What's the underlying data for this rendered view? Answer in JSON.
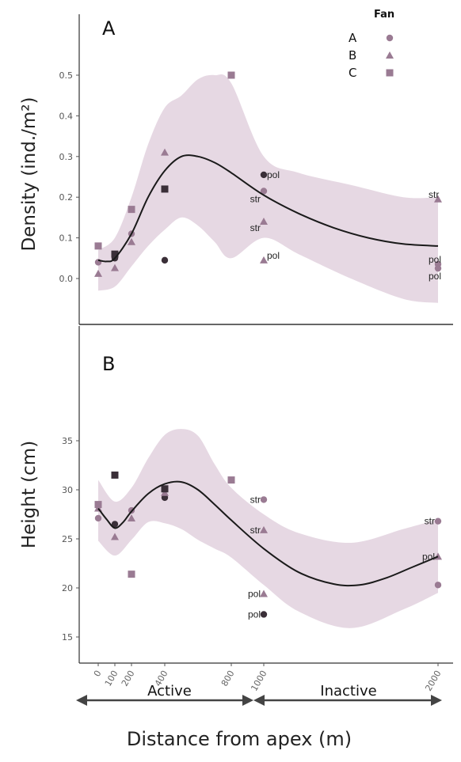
{
  "chart_data": [
    {
      "type": "scatter",
      "panel_label": "A",
      "ylabel": "Density (ind./m²)",
      "ylim": [
        -0.1,
        0.52
      ],
      "yticks": [
        "0.0",
        "0.1",
        "0.2",
        "0.3",
        "0.4",
        "0.5"
      ],
      "ytick_values": [
        0,
        0.1,
        0.2,
        0.3,
        0.4,
        0.5
      ],
      "points": [
        {
          "fan": "A",
          "x": 0,
          "y": 0.04
        },
        {
          "fan": "B",
          "x": 0,
          "y": 0.012
        },
        {
          "fan": "C",
          "x": 0,
          "y": 0.08
        },
        {
          "fan": "A",
          "x": 100,
          "y": 0.05
        },
        {
          "fan": "B",
          "x": 100,
          "y": 0.026
        },
        {
          "fan": "C",
          "x": 100,
          "y": 0.06
        },
        {
          "fan": "A",
          "x": 200,
          "y": 0.11
        },
        {
          "fan": "B",
          "x": 200,
          "y": 0.09
        },
        {
          "fan": "C",
          "x": 200,
          "y": 0.17
        },
        {
          "fan": "A",
          "x": 400,
          "y": 0.045
        },
        {
          "fan": "B",
          "x": 400,
          "y": 0.31
        },
        {
          "fan": "C",
          "x": 400,
          "y": 0.22
        },
        {
          "fan": "C",
          "x": 800,
          "y": 0.5
        },
        {
          "fan": "A",
          "x": 1000,
          "y": 0.255,
          "label": "pol"
        },
        {
          "fan": "A",
          "x": 1000,
          "y": 0.215,
          "label": "str"
        },
        {
          "fan": "B",
          "x": 1000,
          "y": 0.14,
          "label": "str"
        },
        {
          "fan": "B",
          "x": 1000,
          "y": 0.045,
          "label": "pol"
        },
        {
          "fan": "B",
          "x": 2000,
          "y": 0.195,
          "label": "str"
        },
        {
          "fan": "A",
          "x": 2000,
          "y": 0.035,
          "label": "pol"
        },
        {
          "fan": "A",
          "x": 2000,
          "y": 0.025,
          "label": "pol"
        }
      ],
      "trend": [
        {
          "x": 0,
          "y": 0.045
        },
        {
          "x": 50,
          "y": 0.042
        },
        {
          "x": 100,
          "y": 0.05
        },
        {
          "x": 200,
          "y": 0.11
        },
        {
          "x": 300,
          "y": 0.2
        },
        {
          "x": 400,
          "y": 0.265
        },
        {
          "x": 500,
          "y": 0.3
        },
        {
          "x": 600,
          "y": 0.3
        },
        {
          "x": 700,
          "y": 0.285
        },
        {
          "x": 800,
          "y": 0.26
        },
        {
          "x": 1000,
          "y": 0.205
        },
        {
          "x": 1200,
          "y": 0.16
        },
        {
          "x": 1400,
          "y": 0.125
        },
        {
          "x": 1600,
          "y": 0.1
        },
        {
          "x": 1800,
          "y": 0.085
        },
        {
          "x": 2000,
          "y": 0.08
        }
      ],
      "band_upper": [
        {
          "x": 0,
          "y": 0.07
        },
        {
          "x": 100,
          "y": 0.1
        },
        {
          "x": 200,
          "y": 0.2
        },
        {
          "x": 300,
          "y": 0.33
        },
        {
          "x": 400,
          "y": 0.42
        },
        {
          "x": 500,
          "y": 0.45
        },
        {
          "x": 600,
          "y": 0.49
        },
        {
          "x": 700,
          "y": 0.5
        },
        {
          "x": 800,
          "y": 0.48
        },
        {
          "x": 1000,
          "y": 0.3
        },
        {
          "x": 1200,
          "y": 0.26
        },
        {
          "x": 1500,
          "y": 0.23
        },
        {
          "x": 1800,
          "y": 0.2
        },
        {
          "x": 2000,
          "y": 0.2
        }
      ],
      "band_lower": [
        {
          "x": 0,
          "y": -0.03
        },
        {
          "x": 100,
          "y": -0.02
        },
        {
          "x": 200,
          "y": 0.03
        },
        {
          "x": 300,
          "y": 0.08
        },
        {
          "x": 400,
          "y": 0.12
        },
        {
          "x": 500,
          "y": 0.15
        },
        {
          "x": 600,
          "y": 0.13
        },
        {
          "x": 700,
          "y": 0.09
        },
        {
          "x": 800,
          "y": 0.05
        },
        {
          "x": 1000,
          "y": 0.1
        },
        {
          "x": 1200,
          "y": 0.06
        },
        {
          "x": 1500,
          "y": 0.0
        },
        {
          "x": 1800,
          "y": -0.05
        },
        {
          "x": 2000,
          "y": -0.06
        }
      ]
    },
    {
      "type": "scatter",
      "panel_label": "B",
      "ylabel": "Height (cm)",
      "xlabel": "Distance from apex (m)",
      "ylim": [
        15,
        36.5
      ],
      "yticks": [
        "15",
        "20",
        "25",
        "30",
        "35"
      ],
      "ytick_values": [
        15,
        20,
        25,
        30,
        35
      ],
      "xticks": [
        "0",
        "100",
        "200",
        "400",
        "800",
        "1000",
        "2000"
      ],
      "xtick_values": [
        0,
        100,
        200,
        400,
        800,
        1000,
        2000
      ],
      "points": [
        {
          "fan": "A",
          "x": 0,
          "y": 27.1
        },
        {
          "fan": "B",
          "x": 0,
          "y": 28.1
        },
        {
          "fan": "C",
          "x": 0,
          "y": 28.5
        },
        {
          "fan": "A",
          "x": 100,
          "y": 26.5
        },
        {
          "fan": "B",
          "x": 100,
          "y": 25.2
        },
        {
          "fan": "C",
          "x": 100,
          "y": 31.5
        },
        {
          "fan": "A",
          "x": 200,
          "y": 27.9
        },
        {
          "fan": "B",
          "x": 200,
          "y": 27.1
        },
        {
          "fan": "C",
          "x": 200,
          "y": 21.4
        },
        {
          "fan": "A",
          "x": 400,
          "y": 29.2
        },
        {
          "fan": "B",
          "x": 400,
          "y": 29.7
        },
        {
          "fan": "C",
          "x": 400,
          "y": 30.1
        },
        {
          "fan": "C",
          "x": 800,
          "y": 31.0
        },
        {
          "fan": "A",
          "x": 1000,
          "y": 29.0,
          "label": "str"
        },
        {
          "fan": "B",
          "x": 1000,
          "y": 25.9,
          "label": "str"
        },
        {
          "fan": "B",
          "x": 1000,
          "y": 19.4,
          "label": "pol"
        },
        {
          "fan": "A",
          "x": 1000,
          "y": 17.3,
          "label": "pol"
        },
        {
          "fan": "A",
          "x": 2000,
          "y": 26.8,
          "label": "str"
        },
        {
          "fan": "B",
          "x": 2000,
          "y": 23.2,
          "label": "pol"
        },
        {
          "fan": "A",
          "x": 2000,
          "y": 20.3
        }
      ],
      "trend": [
        {
          "x": 0,
          "y": 28.1
        },
        {
          "x": 50,
          "y": 27.0
        },
        {
          "x": 100,
          "y": 26.1
        },
        {
          "x": 150,
          "y": 26.7
        },
        {
          "x": 200,
          "y": 27.8
        },
        {
          "x": 300,
          "y": 29.6
        },
        {
          "x": 400,
          "y": 30.6
        },
        {
          "x": 500,
          "y": 30.8
        },
        {
          "x": 600,
          "y": 30.0
        },
        {
          "x": 700,
          "y": 28.5
        },
        {
          "x": 800,
          "y": 26.9
        },
        {
          "x": 1000,
          "y": 24.0
        },
        {
          "x": 1200,
          "y": 21.6
        },
        {
          "x": 1400,
          "y": 20.4
        },
        {
          "x": 1550,
          "y": 20.3
        },
        {
          "x": 1700,
          "y": 21.0
        },
        {
          "x": 1850,
          "y": 22.1
        },
        {
          "x": 2000,
          "y": 23.2
        }
      ],
      "band_upper": [
        {
          "x": 0,
          "y": 31
        },
        {
          "x": 100,
          "y": 28.8
        },
        {
          "x": 200,
          "y": 30.2
        },
        {
          "x": 300,
          "y": 33.2
        },
        {
          "x": 400,
          "y": 35.6
        },
        {
          "x": 500,
          "y": 36.2
        },
        {
          "x": 600,
          "y": 35.5
        },
        {
          "x": 700,
          "y": 32.6
        },
        {
          "x": 800,
          "y": 30.2
        },
        {
          "x": 1000,
          "y": 27.5
        },
        {
          "x": 1200,
          "y": 25.6
        },
        {
          "x": 1500,
          "y": 24.6
        },
        {
          "x": 1800,
          "y": 26
        },
        {
          "x": 2000,
          "y": 27
        }
      ],
      "band_lower": [
        {
          "x": 0,
          "y": 24.8
        },
        {
          "x": 100,
          "y": 23.3
        },
        {
          "x": 200,
          "y": 24.9
        },
        {
          "x": 300,
          "y": 26.7
        },
        {
          "x": 400,
          "y": 26.6
        },
        {
          "x": 500,
          "y": 26.0
        },
        {
          "x": 600,
          "y": 24.9
        },
        {
          "x": 700,
          "y": 24.0
        },
        {
          "x": 800,
          "y": 23.1
        },
        {
          "x": 1000,
          "y": 20.3
        },
        {
          "x": 1200,
          "y": 17.6
        },
        {
          "x": 1500,
          "y": 15.9
        },
        {
          "x": 1800,
          "y": 17.8
        },
        {
          "x": 2000,
          "y": 19.5
        }
      ]
    }
  ],
  "legend": {
    "title": "Fan",
    "items": [
      {
        "label": "A",
        "shape": "circle"
      },
      {
        "label": "B",
        "shape": "triangle"
      },
      {
        "label": "C",
        "shape": "square"
      }
    ]
  },
  "states": {
    "active": "Active",
    "inactive": "Inactive"
  },
  "colors": {
    "marker": "#9a7b93",
    "marker_dark": "#3a2f38",
    "band": "#e6d8e3",
    "line": "#1a1a1a"
  }
}
